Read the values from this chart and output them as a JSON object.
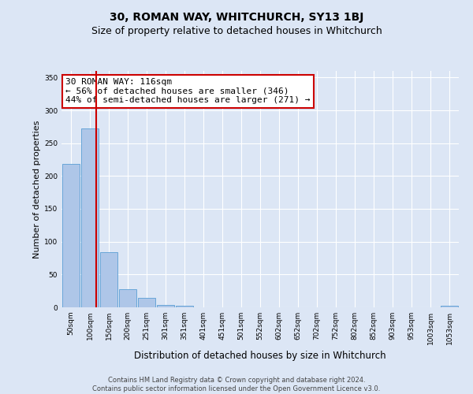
{
  "title": "30, ROMAN WAY, WHITCHURCH, SY13 1BJ",
  "subtitle": "Size of property relative to detached houses in Whitchurch",
  "xlabel": "Distribution of detached houses by size in Whitchurch",
  "ylabel": "Number of detached properties",
  "bar_labels": [
    "50sqm",
    "100sqm",
    "150sqm",
    "200sqm",
    "251sqm",
    "301sqm",
    "351sqm",
    "401sqm",
    "451sqm",
    "501sqm",
    "552sqm",
    "602sqm",
    "652sqm",
    "702sqm",
    "752sqm",
    "802sqm",
    "852sqm",
    "903sqm",
    "953sqm",
    "1003sqm",
    "1053sqm"
  ],
  "bar_values": [
    218,
    272,
    84,
    28,
    14,
    4,
    3,
    0,
    0,
    0,
    0,
    0,
    0,
    0,
    0,
    0,
    0,
    0,
    0,
    0,
    3
  ],
  "bar_color": "#aec6e8",
  "bar_edgecolor": "#5a9fd4",
  "ylim": [
    0,
    360
  ],
  "yticks": [
    0,
    50,
    100,
    150,
    200,
    250,
    300,
    350
  ],
  "red_line_x": 1.33,
  "annotation_text": "30 ROMAN WAY: 116sqm\n← 56% of detached houses are smaller (346)\n44% of semi-detached houses are larger (271) →",
  "annotation_box_color": "#ffffff",
  "annotation_box_edgecolor": "#cc0000",
  "footnote_line1": "Contains HM Land Registry data © Crown copyright and database right 2024.",
  "footnote_line2": "Contains public sector information licensed under the Open Government Licence v3.0.",
  "background_color": "#dce6f5",
  "grid_color": "#ffffff",
  "title_fontsize": 10,
  "subtitle_fontsize": 9,
  "annot_fontsize": 8,
  "ylabel_fontsize": 8,
  "xlabel_fontsize": 8.5,
  "tick_fontsize": 6.5,
  "footnote_fontsize": 6
}
